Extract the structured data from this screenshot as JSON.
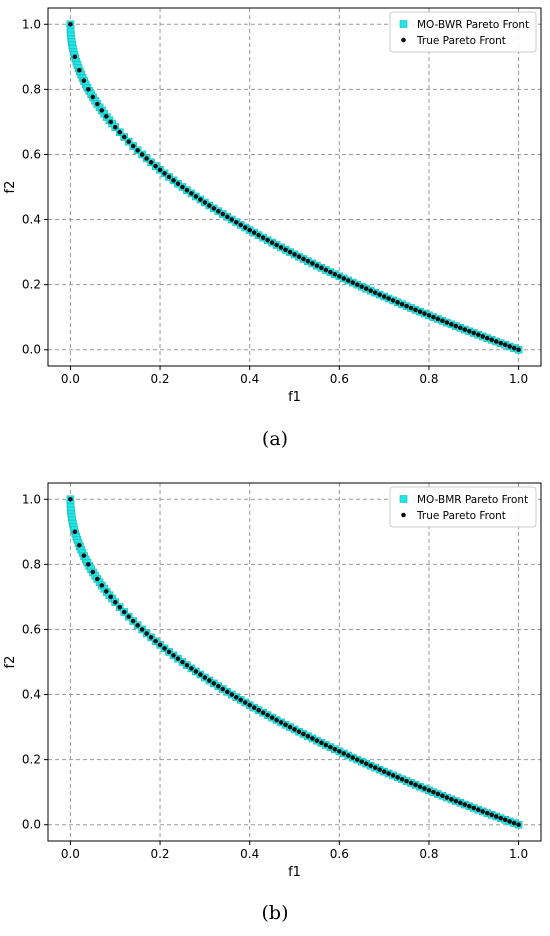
{
  "colors": {
    "front_fill": "#22e5e5",
    "front_edge": "#1bb8b8",
    "true_point": "#111111",
    "grid": "#9a9a9a",
    "axis": "#000000"
  },
  "captions": [
    "(a)",
    "(b)"
  ],
  "chart_data": [
    {
      "type": "scatter",
      "title": "",
      "xlabel": "f1",
      "ylabel": "f2",
      "xlim": [
        -0.05,
        1.05
      ],
      "ylim": [
        -0.05,
        1.05
      ],
      "xticks": [
        "0.0",
        "0.2",
        "0.4",
        "0.6",
        "0.8",
        "1.0"
      ],
      "yticks": [
        "0.0",
        "0.2",
        "0.4",
        "0.6",
        "0.8",
        "1.0"
      ],
      "grid": true,
      "legend_position": "top-right",
      "series": [
        {
          "name": "MO-BWR Pareto Front",
          "marker": "square",
          "curve": "f2 = 1 - sqrt(f1)",
          "x": [
            0.0,
            0.0002,
            0.0006,
            0.0012,
            0.002,
            0.003,
            0.0042,
            0.0056,
            0.0072,
            0.009,
            0.011,
            0.0132,
            0.0156,
            0.0182,
            0.021,
            0.024,
            0.0272,
            0.0306,
            0.0342,
            0.038,
            0.042,
            0.0462,
            0.0506,
            0.0552,
            0.06,
            0.065,
            0.0702,
            0.0756,
            0.0812,
            0.087,
            0.093,
            0.1,
            0.11,
            0.12,
            0.13,
            0.14,
            0.15,
            0.16,
            0.17,
            0.18,
            0.19,
            0.2,
            0.21,
            0.22,
            0.23,
            0.24,
            0.25,
            0.26,
            0.27,
            0.28,
            0.29,
            0.3,
            0.31,
            0.32,
            0.33,
            0.34,
            0.35,
            0.36,
            0.37,
            0.38,
            0.39,
            0.4,
            0.41,
            0.42,
            0.43,
            0.44,
            0.45,
            0.46,
            0.47,
            0.48,
            0.49,
            0.5,
            0.51,
            0.52,
            0.53,
            0.54,
            0.55,
            0.56,
            0.57,
            0.58,
            0.59,
            0.6,
            0.61,
            0.62,
            0.63,
            0.64,
            0.65,
            0.66,
            0.67,
            0.68,
            0.69,
            0.7,
            0.71,
            0.72,
            0.73,
            0.74,
            0.75,
            0.76,
            0.77,
            0.78,
            0.79,
            0.8,
            0.81,
            0.82,
            0.83,
            0.84,
            0.85,
            0.86,
            0.87,
            0.88,
            0.89,
            0.9,
            0.91,
            0.92,
            0.93,
            0.94,
            0.95,
            0.96,
            0.97,
            0.98,
            0.99,
            1.0
          ]
        },
        {
          "name": "True Pareto Front",
          "marker": "dot",
          "curve": "f2 = 1 - sqrt(f1)",
          "x": [
            0.0,
            0.01,
            0.02,
            0.03,
            0.04,
            0.05,
            0.06,
            0.07,
            0.08,
            0.09,
            0.1,
            0.11,
            0.12,
            0.13,
            0.14,
            0.15,
            0.16,
            0.17,
            0.18,
            0.19,
            0.2,
            0.21,
            0.22,
            0.23,
            0.24,
            0.25,
            0.26,
            0.27,
            0.28,
            0.29,
            0.3,
            0.31,
            0.32,
            0.33,
            0.34,
            0.35,
            0.36,
            0.37,
            0.38,
            0.39,
            0.4,
            0.41,
            0.42,
            0.43,
            0.44,
            0.45,
            0.46,
            0.47,
            0.48,
            0.49,
            0.5,
            0.51,
            0.52,
            0.53,
            0.54,
            0.55,
            0.56,
            0.57,
            0.58,
            0.59,
            0.6,
            0.61,
            0.62,
            0.63,
            0.64,
            0.65,
            0.66,
            0.67,
            0.68,
            0.69,
            0.7,
            0.71,
            0.72,
            0.73,
            0.74,
            0.75,
            0.76,
            0.77,
            0.78,
            0.79,
            0.8,
            0.81,
            0.82,
            0.83,
            0.84,
            0.85,
            0.86,
            0.87,
            0.88,
            0.89,
            0.9,
            0.91,
            0.92,
            0.93,
            0.94,
            0.95,
            0.96,
            0.97,
            0.98,
            0.99,
            1.0
          ]
        }
      ]
    },
    {
      "type": "scatter",
      "title": "",
      "xlabel": "f1",
      "ylabel": "f2",
      "xlim": [
        -0.05,
        1.05
      ],
      "ylim": [
        -0.05,
        1.05
      ],
      "xticks": [
        "0.0",
        "0.2",
        "0.4",
        "0.6",
        "0.8",
        "1.0"
      ],
      "yticks": [
        "0.0",
        "0.2",
        "0.4",
        "0.6",
        "0.8",
        "1.0"
      ],
      "grid": true,
      "legend_position": "top-right",
      "series": [
        {
          "name": "MO-BMR Pareto Front",
          "marker": "square",
          "curve": "f2 = 1 - sqrt(f1)",
          "x": [
            0.0,
            0.0002,
            0.0006,
            0.0012,
            0.002,
            0.003,
            0.0042,
            0.0056,
            0.0072,
            0.009,
            0.011,
            0.0132,
            0.0156,
            0.0182,
            0.021,
            0.024,
            0.0272,
            0.0306,
            0.0342,
            0.038,
            0.042,
            0.0462,
            0.0506,
            0.0552,
            0.06,
            0.065,
            0.0702,
            0.0756,
            0.0812,
            0.087,
            0.093,
            0.1,
            0.11,
            0.12,
            0.13,
            0.14,
            0.15,
            0.16,
            0.17,
            0.18,
            0.19,
            0.2,
            0.21,
            0.22,
            0.23,
            0.24,
            0.25,
            0.26,
            0.27,
            0.28,
            0.29,
            0.3,
            0.31,
            0.32,
            0.33,
            0.34,
            0.35,
            0.36,
            0.37,
            0.38,
            0.39,
            0.4,
            0.41,
            0.42,
            0.43,
            0.44,
            0.45,
            0.46,
            0.47,
            0.48,
            0.49,
            0.5,
            0.51,
            0.52,
            0.53,
            0.54,
            0.55,
            0.56,
            0.57,
            0.58,
            0.59,
            0.6,
            0.61,
            0.62,
            0.63,
            0.64,
            0.65,
            0.66,
            0.67,
            0.68,
            0.69,
            0.7,
            0.71,
            0.72,
            0.73,
            0.74,
            0.75,
            0.76,
            0.77,
            0.78,
            0.79,
            0.8,
            0.81,
            0.82,
            0.83,
            0.84,
            0.85,
            0.86,
            0.87,
            0.88,
            0.89,
            0.9,
            0.91,
            0.92,
            0.93,
            0.94,
            0.95,
            0.96,
            0.97,
            0.98,
            0.99,
            1.0
          ]
        },
        {
          "name": "True Pareto Front",
          "marker": "dot",
          "curve": "f2 = 1 - sqrt(f1)",
          "x": [
            0.0,
            0.01,
            0.02,
            0.03,
            0.04,
            0.05,
            0.06,
            0.07,
            0.08,
            0.09,
            0.1,
            0.11,
            0.12,
            0.13,
            0.14,
            0.15,
            0.16,
            0.17,
            0.18,
            0.19,
            0.2,
            0.21,
            0.22,
            0.23,
            0.24,
            0.25,
            0.26,
            0.27,
            0.28,
            0.29,
            0.3,
            0.31,
            0.32,
            0.33,
            0.34,
            0.35,
            0.36,
            0.37,
            0.38,
            0.39,
            0.4,
            0.41,
            0.42,
            0.43,
            0.44,
            0.45,
            0.46,
            0.47,
            0.48,
            0.49,
            0.5,
            0.51,
            0.52,
            0.53,
            0.54,
            0.55,
            0.56,
            0.57,
            0.58,
            0.59,
            0.6,
            0.61,
            0.62,
            0.63,
            0.64,
            0.65,
            0.66,
            0.67,
            0.68,
            0.69,
            0.7,
            0.71,
            0.72,
            0.73,
            0.74,
            0.75,
            0.76,
            0.77,
            0.78,
            0.79,
            0.8,
            0.81,
            0.82,
            0.83,
            0.84,
            0.85,
            0.86,
            0.87,
            0.88,
            0.89,
            0.9,
            0.91,
            0.92,
            0.93,
            0.94,
            0.95,
            0.96,
            0.97,
            0.98,
            0.99,
            1.0
          ]
        }
      ]
    }
  ]
}
